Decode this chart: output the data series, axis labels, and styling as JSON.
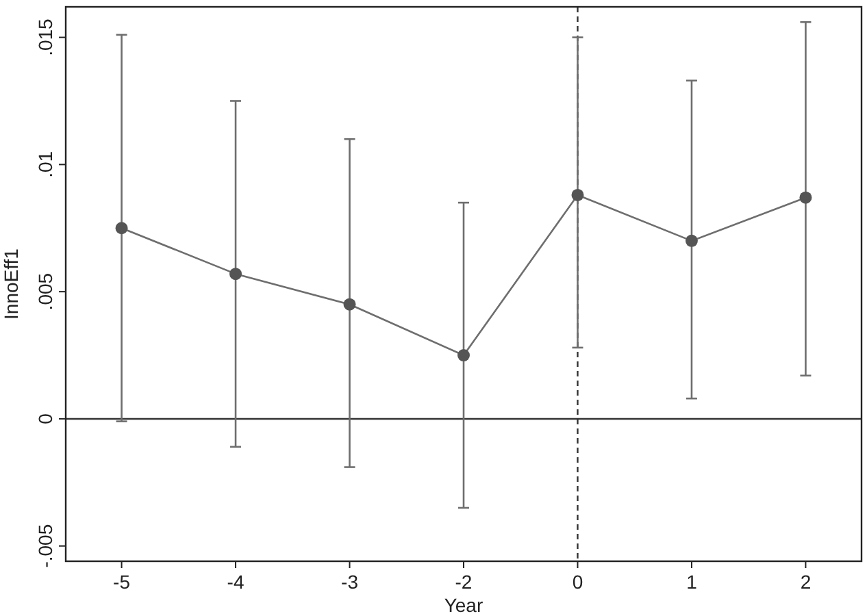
{
  "chart_data": {
    "type": "line",
    "xlabel": "Year",
    "ylabel": "InnoEff1",
    "categories": [
      "-5",
      "-4",
      "-3",
      "-2",
      "0",
      "1",
      "2"
    ],
    "series": [
      {
        "color": "#6e6e6e",
        "values": [
          0.0075,
          0.0057,
          0.0045,
          0.0025,
          0.0088,
          0.007,
          0.0087
        ],
        "errors": [
          [
            -0.0001,
            0.0151
          ],
          [
            -0.0011,
            0.0125
          ],
          [
            -0.0019,
            0.011
          ],
          [
            -0.0035,
            0.0085
          ],
          [
            0.0028,
            0.015
          ],
          [
            0.0008,
            0.0133
          ],
          [
            0.0017,
            0.0156
          ]
        ]
      }
    ],
    "ylim": [
      -0.0056,
      0.0162
    ],
    "yticks": [
      {
        "value": -0.005,
        "label": "-.005"
      },
      {
        "value": 0,
        "label": "0"
      },
      {
        "value": 0.005,
        "label": ".005"
      },
      {
        "value": 0.01,
        "label": ".01"
      },
      {
        "value": 0.015,
        "label": ".015"
      }
    ],
    "ref_lines": [
      {
        "axis": "y",
        "value": 0,
        "color": "#333333",
        "line_style": "solid"
      },
      {
        "axis": "x",
        "value": "0",
        "color": "#333333",
        "line_style": "dashed"
      }
    ],
    "grid": false,
    "marker": "circle",
    "line_style": "solid"
  }
}
